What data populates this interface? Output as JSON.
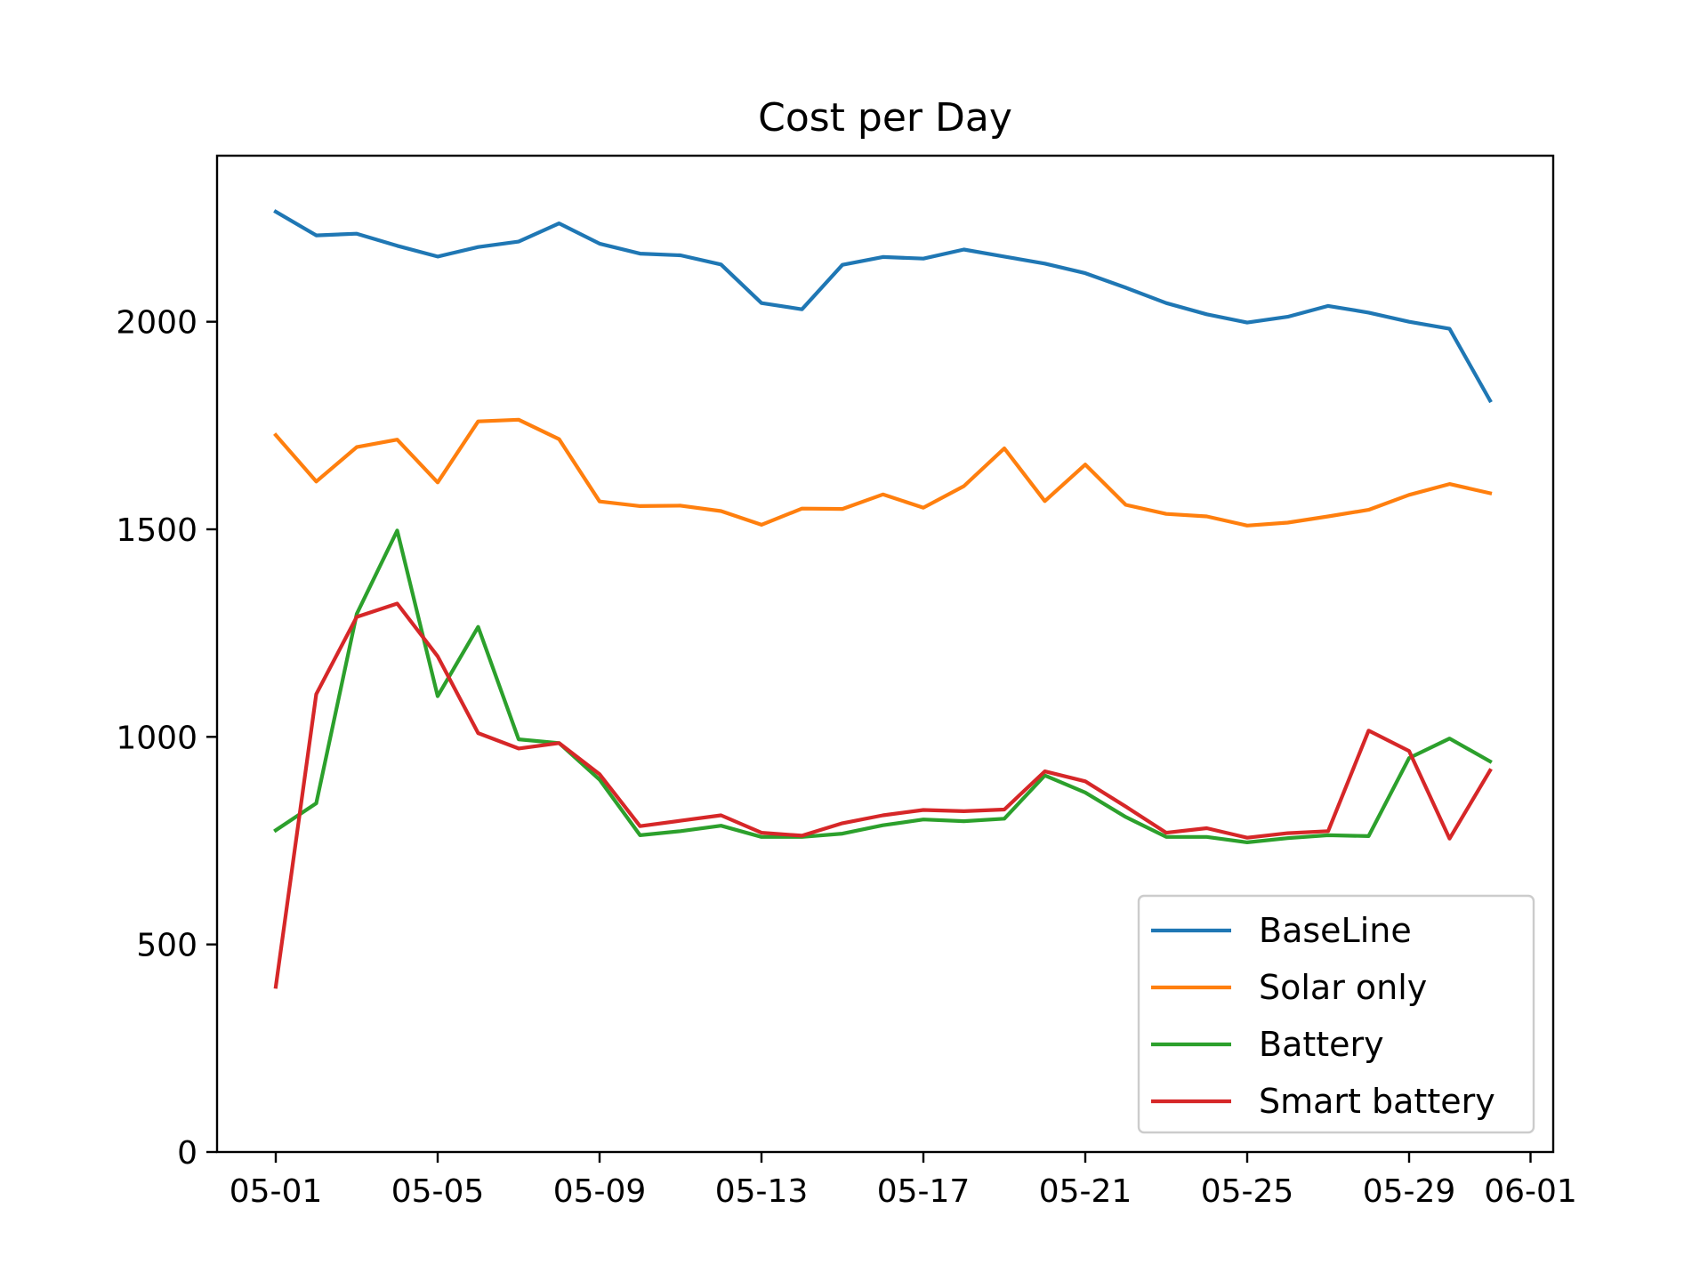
{
  "chart_data": {
    "type": "line",
    "title": "Cost per Day",
    "xlabel": "",
    "ylabel": "",
    "x": [
      "05-01",
      "05-02",
      "05-03",
      "05-04",
      "05-05",
      "05-06",
      "05-07",
      "05-08",
      "05-09",
      "05-10",
      "05-11",
      "05-12",
      "05-13",
      "05-14",
      "05-15",
      "05-16",
      "05-17",
      "05-18",
      "05-19",
      "05-20",
      "05-21",
      "05-22",
      "05-23",
      "05-24",
      "05-25",
      "05-26",
      "05-27",
      "05-28",
      "05-29",
      "05-30",
      "05-31"
    ],
    "xticks": [
      "05-01",
      "05-05",
      "05-09",
      "05-13",
      "05-17",
      "05-21",
      "05-25",
      "05-29",
      "06-01"
    ],
    "xlim": [
      "04-30",
      "06-01"
    ],
    "yticks": [
      0,
      500,
      1000,
      1500,
      2000
    ],
    "ylim": [
      0,
      2400
    ],
    "grid": false,
    "legend_position": "lower-right",
    "series": [
      {
        "name": "BaseLine",
        "color": "#1f77b4",
        "values": [
          2265,
          2208,
          2212,
          2183,
          2157,
          2180,
          2193,
          2237,
          2188,
          2164,
          2160,
          2138,
          2045,
          2030,
          2137,
          2156,
          2152,
          2174,
          2157,
          2140,
          2117,
          2082,
          2045,
          2018,
          1998,
          2012,
          2038,
          2022,
          2000,
          1983,
          1810
        ]
      },
      {
        "name": "Solar only",
        "color": "#ff7f0e",
        "values": [
          1727,
          1615,
          1698,
          1716,
          1613,
          1760,
          1764,
          1717,
          1567,
          1556,
          1557,
          1544,
          1511,
          1550,
          1549,
          1584,
          1552,
          1604,
          1695,
          1568,
          1656,
          1559,
          1537,
          1531,
          1509,
          1516,
          1531,
          1547,
          1583,
          1609,
          1587
        ]
      },
      {
        "name": "Battery",
        "color": "#2ca02c",
        "values": [
          775,
          840,
          1296,
          1497,
          1098,
          1265,
          994,
          985,
          897,
          763,
          773,
          786,
          759,
          759,
          767,
          787,
          801,
          797,
          803,
          907,
          866,
          807,
          759,
          759,
          746,
          756,
          763,
          761,
          949,
          996,
          941
        ]
      },
      {
        "name": "Smart battery",
        "color": "#d62728",
        "values": [
          398,
          1103,
          1289,
          1321,
          1194,
          1009,
          972,
          985,
          910,
          785,
          798,
          811,
          769,
          762,
          792,
          811,
          824,
          821,
          825,
          917,
          893,
          832,
          769,
          780,
          757,
          768,
          773,
          1015,
          966,
          755,
          919
        ]
      }
    ]
  }
}
